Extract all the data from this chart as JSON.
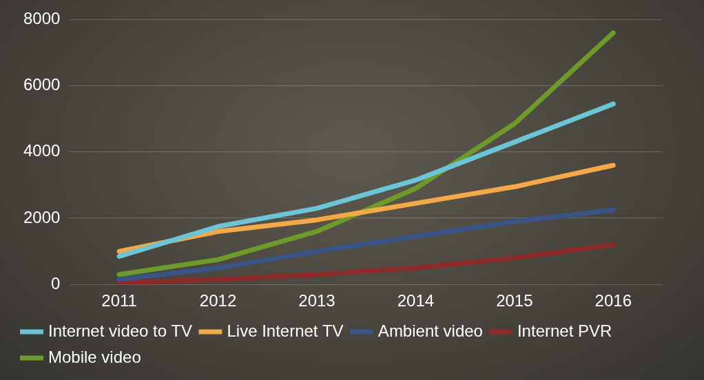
{
  "chart_data": {
    "type": "line",
    "categories": [
      "2011",
      "2012",
      "2013",
      "2014",
      "2015",
      "2016"
    ],
    "series": [
      {
        "name": "Internet video to TV",
        "color": "#6cc5d6",
        "values": [
          850,
          1750,
          2300,
          3150,
          4300,
          5450
        ]
      },
      {
        "name": "Live Internet TV",
        "color": "#f5a846",
        "values": [
          1000,
          1600,
          1950,
          2450,
          2950,
          3600
        ]
      },
      {
        "name": "Ambient video",
        "color": "#3a5488",
        "values": [
          150,
          500,
          1000,
          1450,
          1900,
          2250
        ]
      },
      {
        "name": "Internet PVR",
        "color": "#8e2a2a",
        "values": [
          50,
          150,
          300,
          500,
          800,
          1200
        ]
      },
      {
        "name": "Mobile video",
        "color": "#6e9a2c",
        "values": [
          300,
          750,
          1600,
          2900,
          4850,
          7600
        ]
      }
    ],
    "ylim": [
      0,
      8000
    ],
    "yticks": [
      0,
      2000,
      4000,
      6000,
      8000
    ],
    "grid": "y",
    "legend": "bottom",
    "marker": "none",
    "line_style": "solid"
  }
}
